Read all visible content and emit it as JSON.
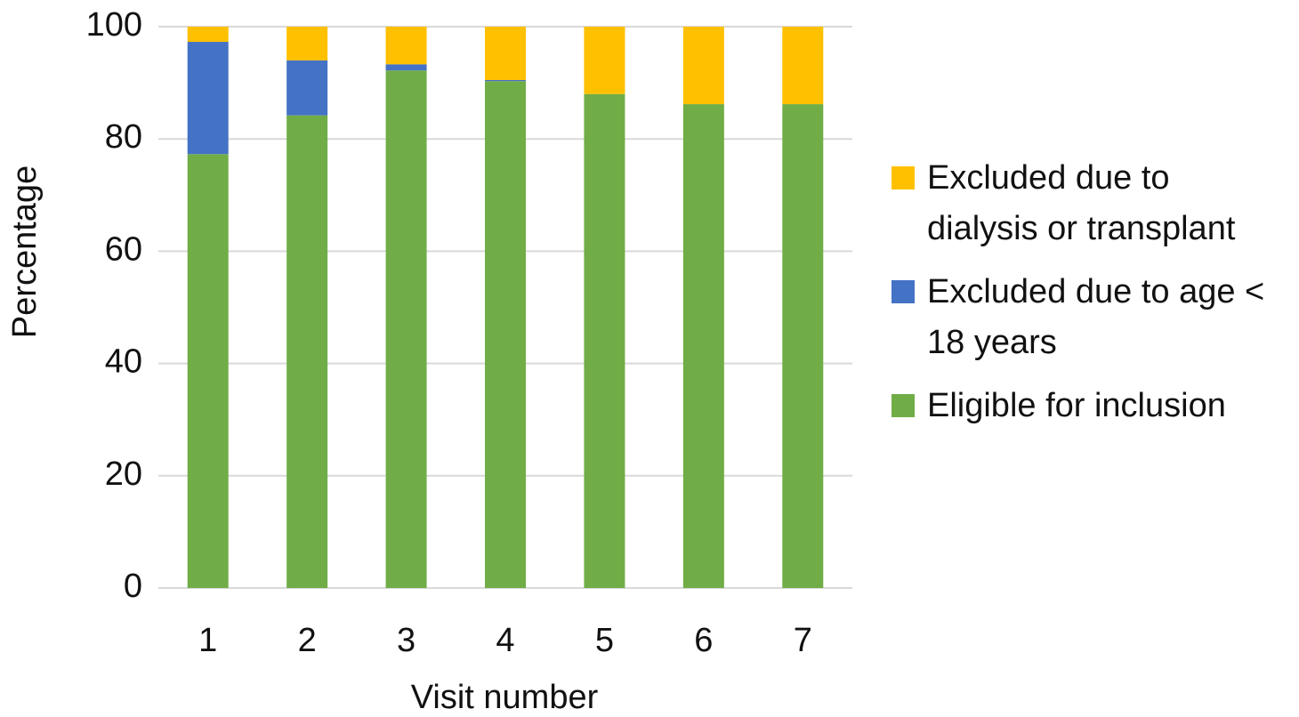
{
  "chart_data": {
    "type": "stacked_bar",
    "x_label": "Visit number",
    "y_label": "Percentage",
    "categories": [
      "1",
      "2",
      "3",
      "4",
      "5",
      "6",
      "7"
    ],
    "series": [
      {
        "name": "Eligible for inclusion",
        "color": "#70ad47",
        "values": [
          77.3,
          84.2,
          92.2,
          90.3,
          88.0,
          86.2,
          86.2
        ]
      },
      {
        "name": "Excluded due to age < 18 years",
        "color": "#4472c4",
        "values": [
          20.0,
          9.8,
          1.1,
          0.2,
          0,
          0,
          0
        ]
      },
      {
        "name": "Excluded due to dialysis or transplant",
        "color": "#ffc000",
        "values": [
          2.7,
          6.0,
          6.7,
          9.5,
          12.0,
          13.8,
          13.8
        ]
      }
    ],
    "ylim": [
      0,
      100
    ],
    "yticks": [
      0,
      20,
      40,
      60,
      80,
      100
    ],
    "grid": true
  }
}
